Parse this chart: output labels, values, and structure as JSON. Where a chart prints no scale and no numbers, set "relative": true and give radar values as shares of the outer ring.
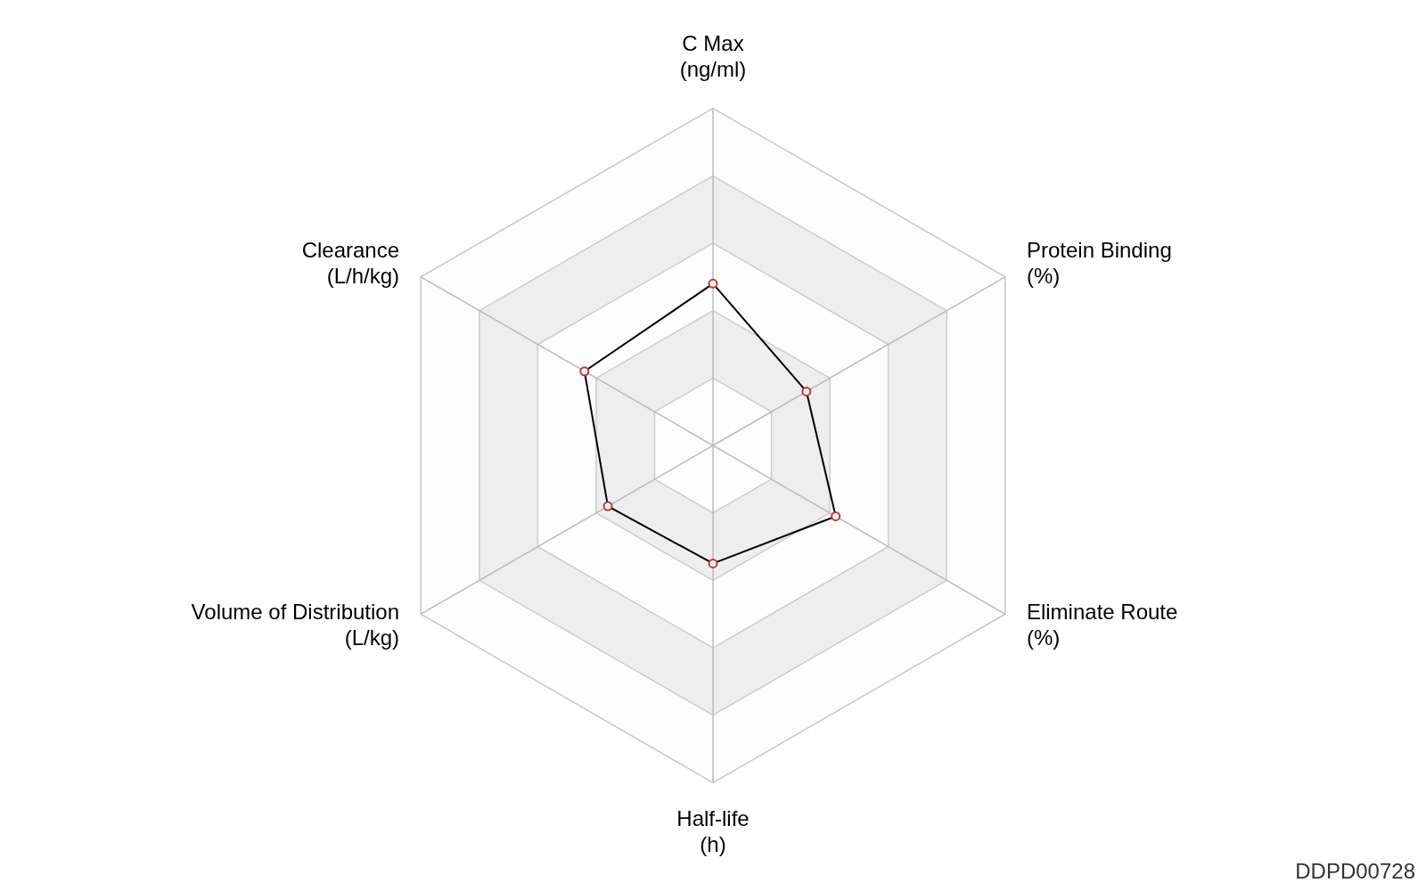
{
  "chart_data": {
    "type": "radar",
    "relative": true,
    "categories": [
      "C Max\n(ng/ml)",
      "Protein Binding\n(%)",
      "Eliminate Route\n(%)",
      "Half-life\n(h)",
      "Volume of Distribution\n(L/kg)",
      "Clearance\n(L/h/kg)"
    ],
    "series": [
      {
        "color": "#000000",
        "values": [
          0.48,
          0.32,
          0.42,
          0.35,
          0.36,
          0.44
        ]
      }
    ],
    "marker": "circle",
    "grid": true,
    "annotations": [
      "DDPD00728"
    ]
  }
}
